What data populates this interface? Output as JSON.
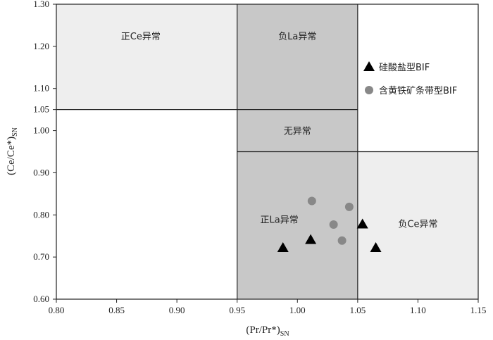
{
  "chart_data": {
    "type": "scatter",
    "xlabel": "(Pr/Pr*)SN",
    "ylabel": "(Ce/Ce*)SN",
    "xlim": [
      0.8,
      1.15
    ],
    "ylim": [
      0.6,
      1.3
    ],
    "x_ticks": [
      "0.80",
      "0.85",
      "0.90",
      "0.95",
      "1.00",
      "1.05",
      "1.10",
      "1.15"
    ],
    "y_ticks": [
      "0.60",
      "0.70",
      "0.80",
      "0.90",
      "1.00",
      "1.05",
      "1.10",
      "1.20",
      "1.30"
    ],
    "grid": false,
    "legend_position": "right",
    "regions": [
      {
        "label": "正Ce异常",
        "x": [
          0.8,
          0.95
        ],
        "y": [
          1.05,
          1.3
        ],
        "color": "#eeeeee"
      },
      {
        "label": "负La异常",
        "x": [
          0.95,
          1.05
        ],
        "y": [
          0.95,
          1.3
        ],
        "color": "#c8c8c8"
      },
      {
        "label": "无异常",
        "x": [
          0.95,
          1.05
        ],
        "y": [
          0.95,
          1.05
        ],
        "color": "#c8c8c8"
      },
      {
        "label": "正La异常",
        "x": [
          0.95,
          1.05
        ],
        "y": [
          0.6,
          0.95
        ],
        "color": "#c8c8c8"
      },
      {
        "label": "负Ce异常",
        "x": [
          1.05,
          1.15
        ],
        "y": [
          0.6,
          0.95
        ],
        "color": "#eeeeee"
      }
    ],
    "series": [
      {
        "name": "硅酸盐型BIF",
        "marker": "triangle",
        "color": "#000000",
        "points": [
          [
            0.988,
            0.722
          ],
          [
            1.011,
            0.741
          ],
          [
            1.054,
            0.778
          ],
          [
            1.065,
            0.722
          ]
        ]
      },
      {
        "name": "含黄铁矿条带型BIF",
        "marker": "circle",
        "color": "#888888",
        "points": [
          [
            1.012,
            0.833
          ],
          [
            1.043,
            0.819
          ],
          [
            1.03,
            0.777
          ],
          [
            1.037,
            0.739
          ]
        ]
      }
    ]
  }
}
